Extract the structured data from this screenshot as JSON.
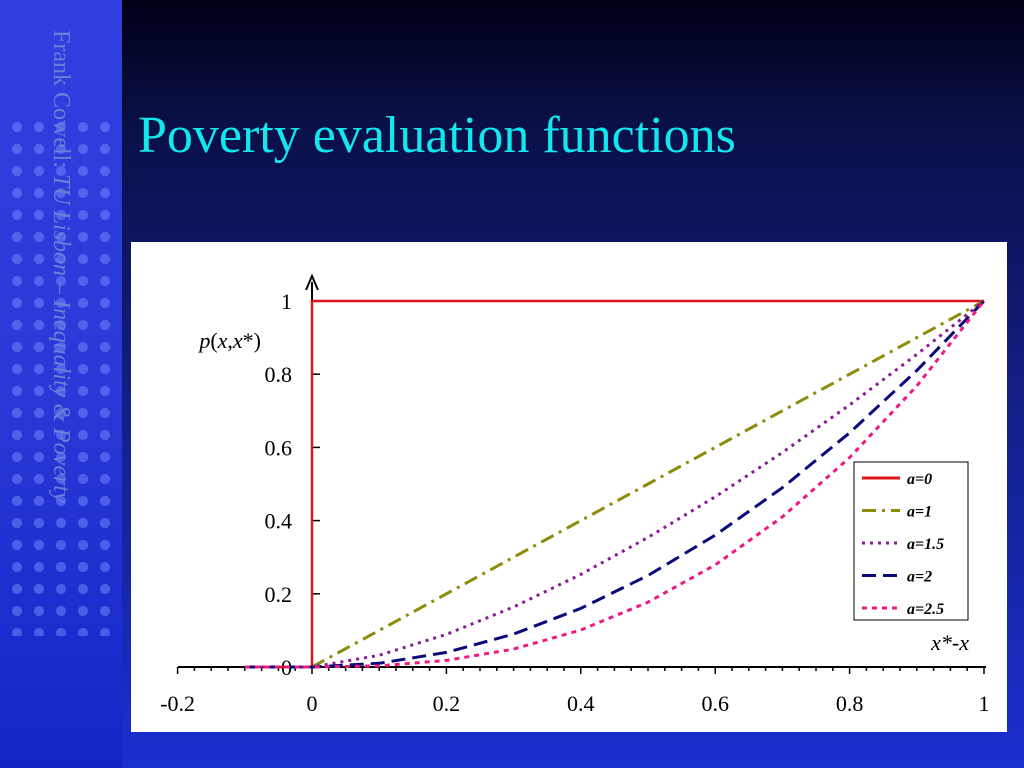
{
  "sidebar": {
    "text_plain": "Frank Cowell: ",
    "text_italic": "TU Lisbon – Inequality & Poverty"
  },
  "slide": {
    "title": "Poverty evaluation functions"
  },
  "colors": {
    "title": "#12e7ee",
    "a0": "#e0141b",
    "a1": "#8c8c0a",
    "a15": "#8a1a9a",
    "a2": "#0a0a7a",
    "a25": "#ee1a82"
  },
  "chart_data": {
    "type": "line",
    "ylabel": "p(x,x*)",
    "xlabel": "x*-x",
    "xlim": [
      -0.2,
      1
    ],
    "ylim": [
      0,
      1
    ],
    "x_ticks": [
      "-0.2",
      "0",
      "0.2",
      "0.4",
      "0.6",
      "0.8",
      "1"
    ],
    "y_ticks": [
      "0",
      "0.2",
      "0.4",
      "0.6",
      "0.8",
      "1"
    ],
    "legend_position": "right",
    "series": [
      {
        "name": "a=0",
        "style": "solid",
        "color": "#e0141b",
        "x": [
          -0.1,
          0,
          0,
          1
        ],
        "y": [
          0,
          0,
          1,
          1
        ]
      },
      {
        "name": "a=1",
        "style": "dash-dot",
        "color": "#8c8c0a",
        "x": [
          0,
          0.1,
          0.2,
          0.3,
          0.4,
          0.5,
          0.6,
          0.7,
          0.8,
          0.9,
          1
        ],
        "y": [
          0,
          0.1,
          0.2,
          0.3,
          0.4,
          0.5,
          0.6,
          0.7,
          0.8,
          0.9,
          1
        ]
      },
      {
        "name": "a=1.5",
        "style": "dotted",
        "color": "#8a1a9a",
        "x": [
          -0.1,
          0,
          0.1,
          0.2,
          0.3,
          0.4,
          0.5,
          0.6,
          0.7,
          0.8,
          0.9,
          1
        ],
        "y": [
          0,
          0,
          0.032,
          0.089,
          0.164,
          0.253,
          0.354,
          0.465,
          0.586,
          0.716,
          0.854,
          1
        ]
      },
      {
        "name": "a=2",
        "style": "dashed",
        "color": "#0a0a7a",
        "x": [
          -0.1,
          0,
          0.1,
          0.2,
          0.3,
          0.4,
          0.5,
          0.6,
          0.7,
          0.8,
          0.9,
          1
        ],
        "y": [
          0,
          0,
          0.01,
          0.04,
          0.09,
          0.16,
          0.25,
          0.36,
          0.49,
          0.64,
          0.81,
          1
        ]
      },
      {
        "name": "a=2.5",
        "style": "short-dash",
        "color": "#ee1a82",
        "x": [
          -0.1,
          0,
          0.1,
          0.2,
          0.3,
          0.4,
          0.5,
          0.6,
          0.7,
          0.8,
          0.9,
          1
        ],
        "y": [
          0,
          0,
          0.003,
          0.018,
          0.049,
          0.101,
          0.177,
          0.279,
          0.41,
          0.572,
          0.768,
          1
        ]
      }
    ]
  }
}
